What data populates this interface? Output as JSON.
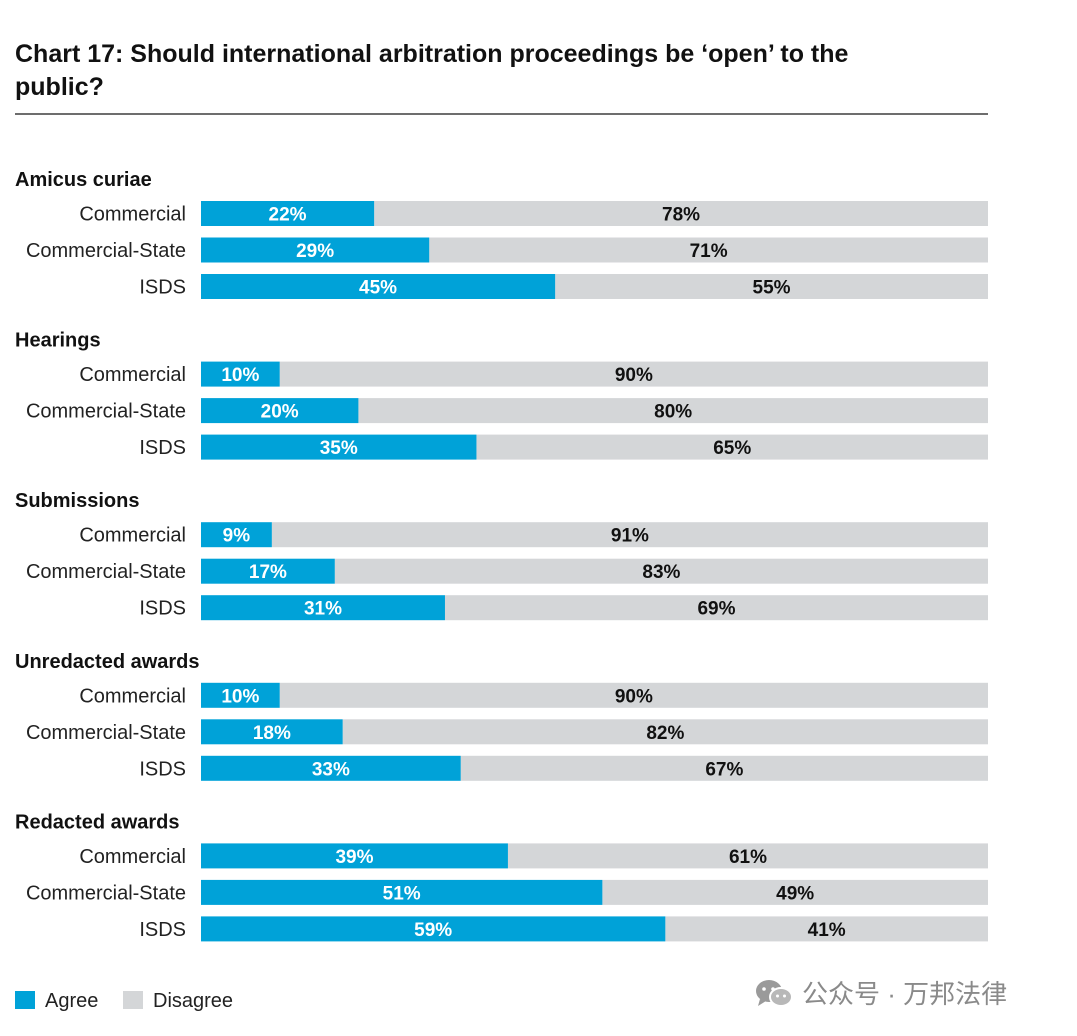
{
  "title": "Chart 17: Should international arbitration proceedings be ‘open’ to the public?",
  "watermark": "公众号 · 万邦法律",
  "colors": {
    "agree": "#00a2d8",
    "disagree": "#d4d6d8",
    "agree_text": "#ffffff",
    "disagree_text": "#111111"
  },
  "chart_data": {
    "type": "bar",
    "orientation": "horizontal-stacked-100",
    "title": "Chart 17: Should international arbitration proceedings be ‘open’ to the public?",
    "xlim": [
      0,
      100
    ],
    "legend": {
      "position": "bottom-left",
      "items": [
        "Agree",
        "Disagree"
      ]
    },
    "series_names": [
      "Agree",
      "Disagree"
    ],
    "groups": [
      {
        "name": "Amicus curiae",
        "rows": [
          {
            "category": "Commercial",
            "agree": 22,
            "disagree": 78
          },
          {
            "category": "Commercial-State",
            "agree": 29,
            "disagree": 71
          },
          {
            "category": "ISDS",
            "agree": 45,
            "disagree": 55
          }
        ]
      },
      {
        "name": "Hearings",
        "rows": [
          {
            "category": "Commercial",
            "agree": 10,
            "disagree": 90
          },
          {
            "category": "Commercial-State",
            "agree": 20,
            "disagree": 80
          },
          {
            "category": "ISDS",
            "agree": 35,
            "disagree": 65
          }
        ]
      },
      {
        "name": "Submissions",
        "rows": [
          {
            "category": "Commercial",
            "agree": 9,
            "disagree": 91
          },
          {
            "category": "Commercial-State",
            "agree": 17,
            "disagree": 83
          },
          {
            "category": "ISDS",
            "agree": 31,
            "disagree": 69
          }
        ]
      },
      {
        "name": "Unredacted awards",
        "rows": [
          {
            "category": "Commercial",
            "agree": 10,
            "disagree": 90
          },
          {
            "category": "Commercial-State",
            "agree": 18,
            "disagree": 82
          },
          {
            "category": "ISDS",
            "agree": 33,
            "disagree": 67
          }
        ]
      },
      {
        "name": "Redacted awards",
        "rows": [
          {
            "category": "Commercial",
            "agree": 39,
            "disagree": 61
          },
          {
            "category": "Commercial-State",
            "agree": 51,
            "disagree": 49
          },
          {
            "category": "ISDS",
            "agree": 59,
            "disagree": 41
          }
        ]
      }
    ]
  }
}
